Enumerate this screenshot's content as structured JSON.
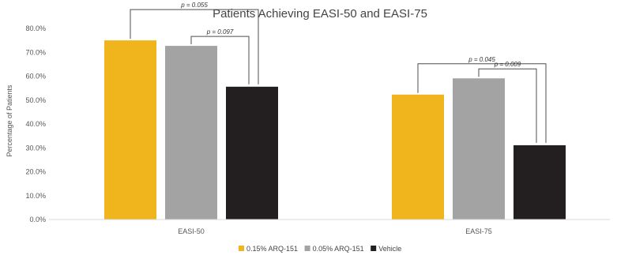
{
  "chart_data": {
    "type": "bar",
    "title": "Patients Achieving EASI-50 and EASI-75",
    "ylabel": "Percentage of Patients",
    "xlabel": "",
    "ylim": [
      0,
      80
    ],
    "yticks": [
      "0.0%",
      "10.0%",
      "20.0%",
      "30.0%",
      "40.0%",
      "50.0%",
      "60.0%",
      "70.0%",
      "80.0%"
    ],
    "categories": [
      "EASI-50",
      "EASI-75"
    ],
    "series": [
      {
        "name": "0.15% ARQ-151",
        "color": "#F0B41C",
        "values": [
          75.0,
          52.3
        ]
      },
      {
        "name": "0.05% ARQ-151",
        "color": "#A3A3A3",
        "values": [
          72.7,
          59.1
        ]
      },
      {
        "name": "Vehicle",
        "color": "#231F20",
        "values": [
          55.6,
          31.1
        ]
      }
    ],
    "annotations": [
      {
        "category": "EASI-50",
        "from_series": 0,
        "to_series": 2,
        "text": "p = 0.055"
      },
      {
        "category": "EASI-50",
        "from_series": 1,
        "to_series": 2,
        "text": "p = 0.097"
      },
      {
        "category": "EASI-75",
        "from_series": 0,
        "to_series": 2,
        "text": "p = 0.045"
      },
      {
        "category": "EASI-75",
        "from_series": 1,
        "to_series": 2,
        "text": "p = 0.009"
      }
    ],
    "grid": false,
    "legend_position": "bottom"
  }
}
